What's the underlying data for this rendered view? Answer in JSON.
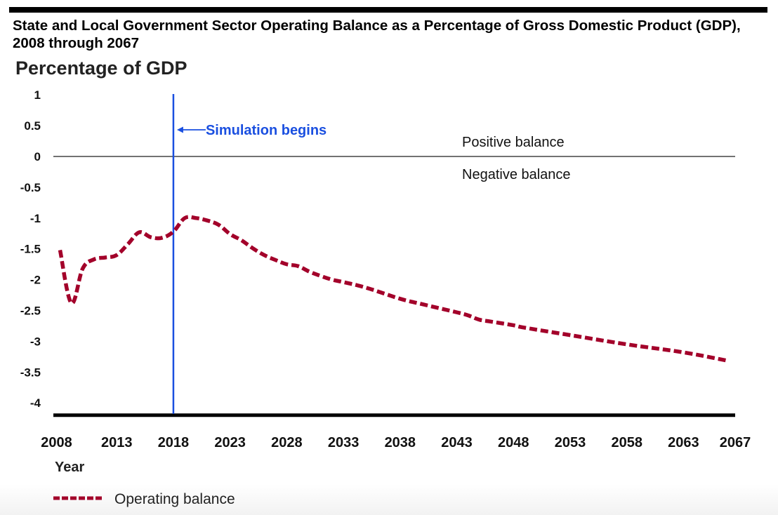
{
  "title": "State and Local Government Sector Operating Balance as a Percentage of Gross Domestic Product (GDP), 2008 through 2067",
  "colors": {
    "series": "#a3002a",
    "simulation_line": "#1a4fe0",
    "axis": "#000000",
    "zero_line": "#444444"
  },
  "chart_data": {
    "type": "line",
    "title": "State and Local Government Sector Operating Balance as a Percentage of Gross Domestic Product (GDP), 2008 through 2067",
    "xlabel": "Year",
    "ylabel": "Percentage of GDP",
    "xlim": [
      2008,
      2067
    ],
    "ylim": [
      -4.2,
      1
    ],
    "grid": false,
    "x_ticks": [
      2008,
      2013,
      2018,
      2023,
      2028,
      2033,
      2038,
      2043,
      2048,
      2053,
      2058,
      2063,
      2067
    ],
    "y_ticks": [
      1,
      0.5,
      0,
      -0.5,
      -1,
      -1.5,
      -2,
      -2.5,
      -3,
      -3.5,
      -4
    ],
    "y_tick_labels": [
      "1",
      "0.5",
      "0",
      "-0.5",
      "-1",
      "-1.5",
      "-2",
      "-2.5",
      "-3",
      "-3.5",
      "-4"
    ],
    "legend_position": "bottom-left",
    "series": [
      {
        "name": "Operating balance",
        "style": "dashed",
        "x": [
          2008,
          2009,
          2010,
          2011,
          2012,
          2013,
          2014,
          2015,
          2016,
          2017,
          2018,
          2019,
          2020,
          2021,
          2022,
          2023,
          2024,
          2025,
          2026,
          2027,
          2028,
          2029,
          2030,
          2031,
          2032,
          2033,
          2035,
          2038,
          2040,
          2043,
          2044,
          2045,
          2046,
          2048,
          2049,
          2053,
          2058,
          2063,
          2067
        ],
        "values": [
          -1.52,
          -2.38,
          -1.82,
          -1.67,
          -1.64,
          -1.6,
          -1.42,
          -1.23,
          -1.31,
          -1.32,
          -1.22,
          -1.0,
          -1.0,
          -1.04,
          -1.11,
          -1.26,
          -1.36,
          -1.49,
          -1.6,
          -1.68,
          -1.75,
          -1.78,
          -1.87,
          -1.94,
          -2.0,
          -2.04,
          -2.13,
          -2.31,
          -2.4,
          -2.53,
          -2.58,
          -2.65,
          -2.68,
          -2.74,
          -2.78,
          -2.9,
          -3.05,
          -3.18,
          -3.32
        ]
      }
    ],
    "annotations": [
      {
        "type": "vertical_line",
        "x": 2018,
        "label": "Simulation begins"
      },
      {
        "type": "horizontal_line",
        "y": 0
      },
      {
        "type": "text",
        "text": "Positive balance",
        "region": "above zero line"
      },
      {
        "type": "text",
        "text": "Negative balance",
        "region": "below zero line"
      }
    ]
  }
}
